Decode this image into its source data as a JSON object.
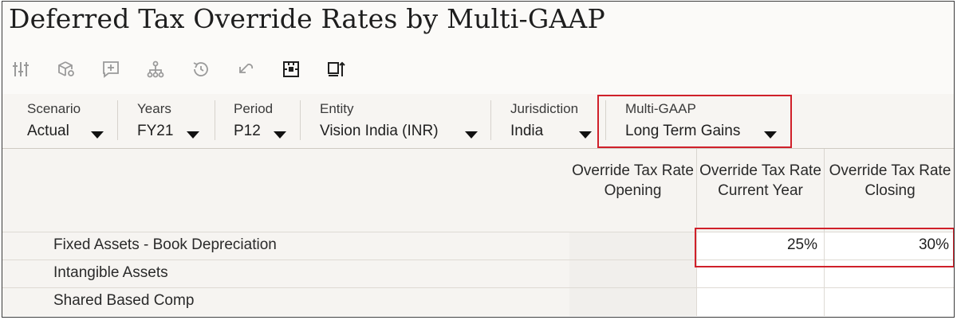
{
  "page": {
    "title": "Deferred Tax Override Rates by Multi-GAAP"
  },
  "toolbar": {
    "icons": [
      "sliders-icon",
      "cube-settings-icon",
      "add-comment-icon",
      "hierarchy-icon",
      "history-icon",
      "undo-icon",
      "cell-focus-icon",
      "export-icon"
    ]
  },
  "filters": [
    {
      "label": "Scenario",
      "value": "Actual"
    },
    {
      "label": "Years",
      "value": "FY21"
    },
    {
      "label": "Period",
      "value": "P12"
    },
    {
      "label": "Entity",
      "value": "Vision India (INR)"
    },
    {
      "label": "Jurisdiction",
      "value": "India"
    },
    {
      "label": "Multi-GAAP",
      "value": "Long Term Gains"
    }
  ],
  "grid": {
    "columns": [
      "Override Tax Rate Opening",
      "Override Tax Rate Current Year",
      "Override Tax Rate Closing"
    ],
    "rows": [
      {
        "label": "Fixed Assets - Book Depreciation",
        "opening": "",
        "current": "25%",
        "closing": "30%"
      },
      {
        "label": "Intangible Assets",
        "opening": "",
        "current": "",
        "closing": ""
      },
      {
        "label": "Shared Based Comp",
        "opening": "",
        "current": "",
        "closing": ""
      }
    ]
  },
  "colors": {
    "highlight": "#d0202a",
    "icon_disabled": "#9a9a9a",
    "icon_enabled": "#1f1f1f"
  }
}
